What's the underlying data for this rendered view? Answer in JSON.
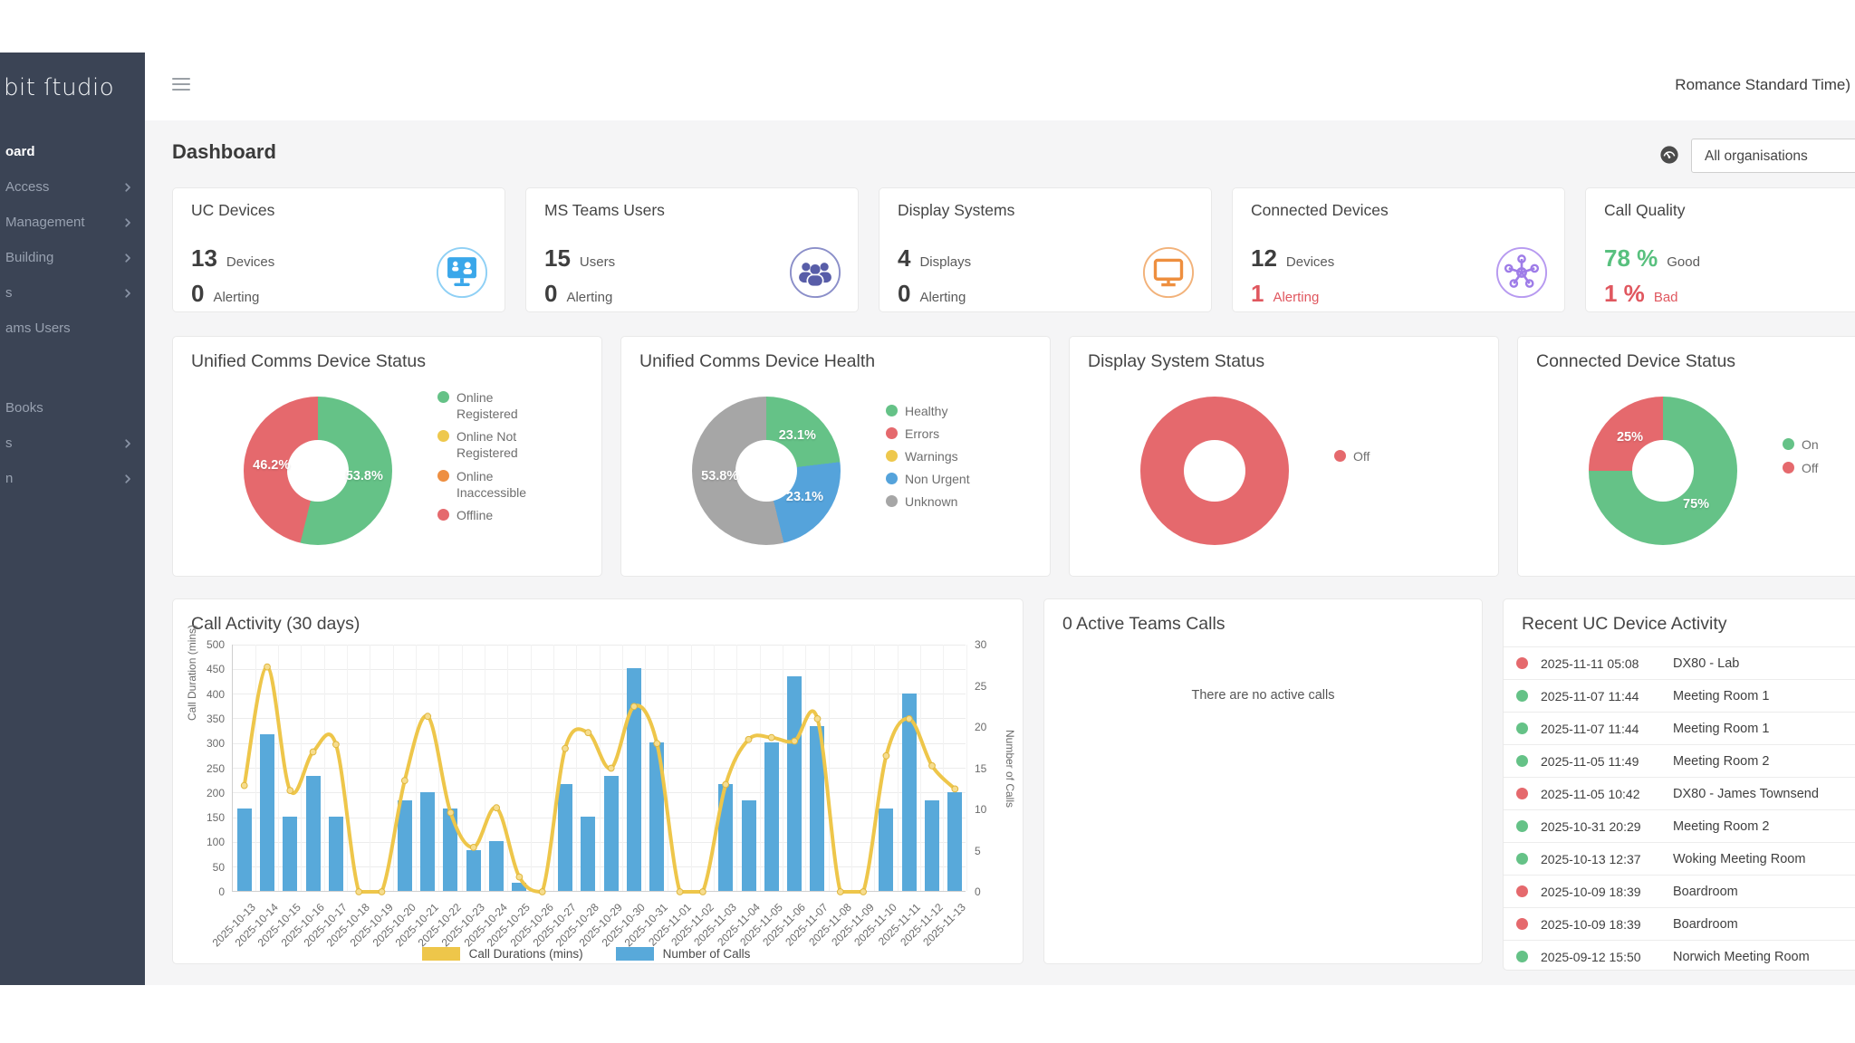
{
  "header": {
    "timezone_text": "Romance Standard Time)",
    "org_selector_value": "All organisations"
  },
  "sidebar": {
    "logo_text": "bit ſtudio",
    "items": [
      {
        "label": "oard",
        "active": true,
        "chevron": false,
        "name": "dashboard"
      },
      {
        "label": "Access",
        "active": false,
        "chevron": true,
        "name": "access"
      },
      {
        "label": "Management",
        "active": false,
        "chevron": true,
        "name": "management"
      },
      {
        "label": "Building",
        "active": false,
        "chevron": true,
        "name": "building"
      },
      {
        "label": "s",
        "active": false,
        "chevron": true,
        "name": "item-4"
      },
      {
        "label": "ams Users",
        "active": false,
        "chevron": false,
        "name": "teams-users"
      },
      {
        "label": "Books",
        "active": false,
        "chevron": false,
        "gap": true,
        "name": "books"
      },
      {
        "label": "s",
        "active": false,
        "chevron": true,
        "name": "item-7"
      },
      {
        "label": "n",
        "active": false,
        "chevron": true,
        "name": "item-8"
      }
    ]
  },
  "page": {
    "title": "Dashboard"
  },
  "stat_cards": [
    {
      "title": "UC Devices",
      "icon": "video-call-icon",
      "rows": [
        {
          "value": "13",
          "label": "Devices",
          "tone": "normal"
        },
        {
          "value": "0",
          "label": "Alerting",
          "tone": "normal"
        }
      ]
    },
    {
      "title": "MS Teams Users",
      "icon": "users-icon",
      "rows": [
        {
          "value": "15",
          "label": "Users",
          "tone": "normal"
        },
        {
          "value": "0",
          "label": "Alerting",
          "tone": "normal"
        }
      ]
    },
    {
      "title": "Display Systems",
      "icon": "monitor-icon",
      "rows": [
        {
          "value": "4",
          "label": "Displays",
          "tone": "normal"
        },
        {
          "value": "0",
          "label": "Alerting",
          "tone": "normal"
        }
      ]
    },
    {
      "title": "Connected Devices",
      "icon": "hub-icon",
      "rows": [
        {
          "value": "12",
          "label": "Devices",
          "tone": "normal"
        },
        {
          "value": "1",
          "label": "Alerting",
          "tone": "red"
        }
      ]
    },
    {
      "title": "Call Quality",
      "icon": "none",
      "rows": [
        {
          "value": "78 %",
          "label": "Good",
          "tone": "green"
        },
        {
          "value": "1 %",
          "label": "Bad",
          "tone": "red"
        }
      ]
    }
  ],
  "chart_data": [
    {
      "type": "pie",
      "title": "Unified Comms Device Status",
      "legend_position": "right",
      "series": [
        {
          "label": "Online Registered",
          "value": 53.8,
          "color": "#65c287",
          "display_label": "53.8%"
        },
        {
          "label": "Online Not Registered",
          "value": 0,
          "color": "#eec84d"
        },
        {
          "label": "Online Inaccessible",
          "value": 0,
          "color": "#ee8f41"
        },
        {
          "label": "Offline",
          "value": 46.2,
          "color": "#e5696d",
          "display_label": "46.2%"
        }
      ]
    },
    {
      "type": "pie",
      "title": "Unified Comms Device Health",
      "legend_position": "right",
      "series": [
        {
          "label": "Healthy",
          "value": 23.1,
          "color": "#65c287",
          "display_label": "23.1%"
        },
        {
          "label": "Errors",
          "value": 0,
          "color": "#e5696d"
        },
        {
          "label": "Warnings",
          "value": 0,
          "color": "#eec84d"
        },
        {
          "label": "Non Urgent",
          "value": 23.1,
          "color": "#55a3db",
          "display_label": "23.1%"
        },
        {
          "label": "Unknown",
          "value": 53.8,
          "color": "#a6a6a6",
          "display_label": "53.8%"
        }
      ]
    },
    {
      "type": "pie",
      "title": "Display System Status",
      "legend_position": "right",
      "series": [
        {
          "label": "Off",
          "value": 100,
          "color": "#e5696d"
        }
      ]
    },
    {
      "type": "pie",
      "title": "Connected Device Status",
      "legend_position": "right",
      "series": [
        {
          "label": "On",
          "value": 75,
          "color": "#65c287",
          "display_label": "75%"
        },
        {
          "label": "Off",
          "value": 25,
          "color": "#e5696d",
          "display_label": "25%"
        }
      ]
    },
    {
      "type": "combo",
      "title": "Call Activity (30 days)",
      "grid": true,
      "legend_position": "bottom",
      "categories": [
        "2025-10-13",
        "2025-10-14",
        "2025-10-15",
        "2025-10-16",
        "2025-10-17",
        "2025-10-18",
        "2025-10-19",
        "2025-10-20",
        "2025-10-21",
        "2025-10-22",
        "2025-10-23",
        "2025-10-24",
        "2025-10-25",
        "2025-10-26",
        "2025-10-27",
        "2025-10-28",
        "2025-10-29",
        "2025-10-30",
        "2025-10-31",
        "2025-11-01",
        "2025-11-02",
        "2025-11-03",
        "2025-11-04",
        "2025-11-05",
        "2025-11-06",
        "2025-11-07",
        "2025-11-08",
        "2025-11-09",
        "2025-11-10",
        "2025-11-11",
        "2025-11-12",
        "2025-11-13"
      ],
      "series": [
        {
          "name": "Call Durations (mins)",
          "type": "line",
          "axis": "left",
          "color": "#eec64a",
          "values": [
            215,
            455,
            205,
            283,
            298,
            0,
            0,
            225,
            355,
            160,
            90,
            170,
            30,
            0,
            290,
            322,
            250,
            375,
            300,
            0,
            0,
            217,
            308,
            312,
            305,
            350,
            0,
            0,
            275,
            350,
            255,
            208
          ]
        },
        {
          "name": "Number of Calls",
          "type": "bar",
          "axis": "right",
          "color": "#58a9da",
          "values": [
            10,
            19,
            9,
            14,
            9,
            0,
            0,
            11,
            12,
            10,
            5,
            6,
            1,
            0,
            13,
            9,
            14,
            27,
            18,
            0,
            0,
            13,
            11,
            18,
            26,
            20,
            0,
            0,
            10,
            24,
            11,
            12
          ]
        }
      ],
      "left_axis": {
        "label": "Call Duration (mins)",
        "min": 0,
        "max": 500,
        "step": 50
      },
      "right_axis": {
        "label": "Number of Calls",
        "min": 0,
        "max": 30,
        "step": 5
      }
    }
  ],
  "active_calls": {
    "title": "0 Active Teams Calls",
    "message": "There are no active calls"
  },
  "recent_activity": {
    "title": "Recent UC Device Activity",
    "rows": [
      {
        "status": "red",
        "time": "2025-11-11 05:08",
        "device": "DX80 - Lab"
      },
      {
        "status": "green",
        "time": "2025-11-07 11:44",
        "device": "Meeting Room 1"
      },
      {
        "status": "green",
        "time": "2025-11-07 11:44",
        "device": "Meeting Room 1"
      },
      {
        "status": "green",
        "time": "2025-11-05 11:49",
        "device": "Meeting Room 2"
      },
      {
        "status": "red",
        "time": "2025-11-05 10:42",
        "device": "DX80 - James Townsend"
      },
      {
        "status": "green",
        "time": "2025-10-31 20:29",
        "device": "Meeting Room 2"
      },
      {
        "status": "green",
        "time": "2025-10-13 12:37",
        "device": "Woking Meeting Room"
      },
      {
        "status": "red",
        "time": "2025-10-09 18:39",
        "device": "Boardroom"
      },
      {
        "status": "red",
        "time": "2025-10-09 18:39",
        "device": "Boardroom"
      },
      {
        "status": "green",
        "time": "2025-09-12 15:50",
        "device": "Norwich Meeting Room"
      }
    ]
  },
  "colors": {
    "green": "#65c287",
    "red": "#e5696d",
    "yellow": "#eec84d",
    "orange": "#ee8f41",
    "blue": "#55a3db",
    "gray": "#a6a6a6",
    "bar_blue": "#58a9da",
    "line_yellow": "#eec64a",
    "sidebar_bg": "#3b4455",
    "content_bg": "#f5f5f6",
    "icon_blue": "#3aa7ea",
    "icon_indigo": "#585da8",
    "icon_orange": "#ee8f3f",
    "icon_purple": "#9e7ce8"
  }
}
